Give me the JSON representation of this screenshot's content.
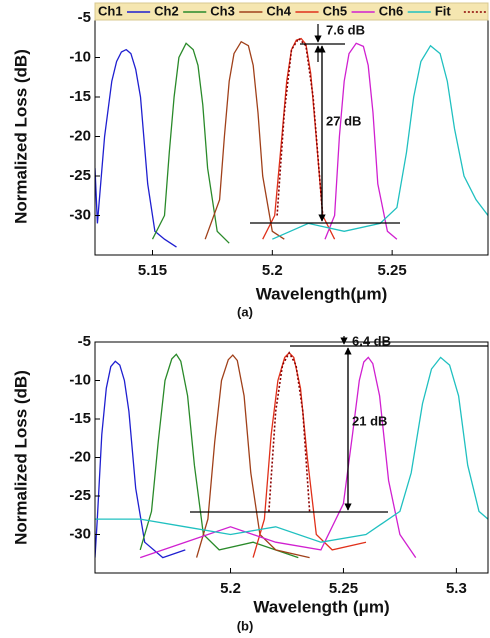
{
  "chart_data": [
    {
      "type": "line",
      "caption": "(a)",
      "x_label": "Wavelength(μm)",
      "y_label": "Normalized Loss (dB)",
      "xlim": [
        5.126,
        5.29
      ],
      "ylim": [
        -35,
        -5
      ],
      "xticks": [
        5.15,
        5.2,
        5.25
      ],
      "yticks": [
        -30,
        -25,
        -20,
        -15,
        -10,
        -5
      ],
      "legend": "top",
      "annotations": [
        "7.6 dB",
        "27 dB"
      ],
      "series": [
        {
          "name": "Ch1",
          "color": "#1f1fd0",
          "x": [
            5.126,
            5.127,
            5.13,
            5.133,
            5.135,
            5.137,
            5.139,
            5.141,
            5.143,
            5.145,
            5.148,
            5.151,
            5.155,
            5.16
          ],
          "values": [
            -24,
            -31,
            -20,
            -13,
            -10.5,
            -9.3,
            -9,
            -9.5,
            -11.5,
            -15,
            -26,
            -32,
            -33,
            -34
          ]
        },
        {
          "name": "Ch2",
          "color": "#2a8a2a",
          "x": [
            5.15,
            5.155,
            5.157,
            5.159,
            5.161,
            5.164,
            5.167,
            5.169,
            5.171,
            5.173,
            5.177,
            5.182
          ],
          "values": [
            -33,
            -30,
            -22,
            -15,
            -10,
            -8.2,
            -9,
            -11,
            -16,
            -24,
            -32,
            -33.5
          ]
        },
        {
          "name": "Ch3",
          "color": "#a0401a",
          "x": [
            5.172,
            5.178,
            5.18,
            5.182,
            5.184,
            5.187,
            5.19,
            5.192,
            5.194,
            5.196,
            5.2,
            5.205
          ],
          "values": [
            -33,
            -28,
            -20,
            -13,
            -9.5,
            -8,
            -8.5,
            -11,
            -17,
            -25,
            -32,
            -33
          ]
        },
        {
          "name": "Ch4",
          "color": "#e0301a",
          "x": [
            5.196,
            5.201,
            5.204,
            5.206,
            5.208,
            5.21,
            5.212,
            5.214,
            5.216,
            5.218,
            5.221,
            5.226
          ],
          "values": [
            -33,
            -30,
            -20,
            -13,
            -9,
            -7.8,
            -7.6,
            -8.3,
            -12,
            -19,
            -30,
            -33
          ]
        },
        {
          "name": "Ch5",
          "color": "#d020d0",
          "x": [
            5.222,
            5.226,
            5.228,
            5.23,
            5.232,
            5.235,
            5.238,
            5.24,
            5.242,
            5.244,
            5.248,
            5.252
          ],
          "values": [
            -33,
            -30,
            -20,
            -13,
            -9.5,
            -8.2,
            -8.6,
            -11,
            -17,
            -26,
            -32,
            -33
          ]
        },
        {
          "name": "Ch6",
          "color": "#20c0c0",
          "x": [
            5.2,
            5.215,
            5.23,
            5.245,
            5.252,
            5.256,
            5.259,
            5.262,
            5.266,
            5.27,
            5.273,
            5.276,
            5.28,
            5.285,
            5.29
          ],
          "values": [
            -33,
            -31,
            -32,
            -31,
            -29,
            -22,
            -15,
            -10.5,
            -8.5,
            -9.5,
            -13,
            -19,
            -25,
            -28,
            -30
          ]
        },
        {
          "name": "Fit",
          "color": "#8b0000",
          "linestyle": "dotted",
          "x": [
            5.202,
            5.205,
            5.208,
            5.211,
            5.214,
            5.217,
            5.221
          ],
          "values": [
            -30,
            -17,
            -9,
            -7.6,
            -8.5,
            -15,
            -30
          ]
        }
      ]
    },
    {
      "type": "line",
      "caption": "(b)",
      "x_label": "Wavelength (μm)",
      "y_label": "Normalized Loss (dB)",
      "xlim": [
        5.14,
        5.314
      ],
      "ylim": [
        -35,
        -5
      ],
      "xticks": [
        5.2,
        5.25,
        5.3
      ],
      "yticks": [
        -30,
        -25,
        -20,
        -15,
        -10,
        -5
      ],
      "annotations": [
        "6.4 dB",
        "21 dB"
      ],
      "series": [
        {
          "name": "Ch1",
          "color": "#1f1fd0",
          "x": [
            5.14,
            5.141,
            5.143,
            5.145,
            5.147,
            5.149,
            5.151,
            5.153,
            5.155,
            5.158,
            5.162,
            5.17,
            5.18
          ],
          "values": [
            -33,
            -28,
            -17,
            -11,
            -8.2,
            -7.5,
            -8,
            -10,
            -14,
            -24,
            -31,
            -33,
            -32
          ]
        },
        {
          "name": "Ch2",
          "color": "#2a8a2a",
          "x": [
            5.16,
            5.165,
            5.168,
            5.171,
            5.174,
            5.176,
            5.178,
            5.181,
            5.184,
            5.188,
            5.195,
            5.21,
            5.23
          ],
          "values": [
            -32,
            -27,
            -18,
            -10,
            -7.2,
            -6.6,
            -7.5,
            -12,
            -21,
            -30,
            -32,
            -31,
            -33
          ]
        },
        {
          "name": "Ch3",
          "color": "#a0401a",
          "x": [
            5.185,
            5.19,
            5.193,
            5.196,
            5.199,
            5.201,
            5.203,
            5.206,
            5.209,
            5.213,
            5.22,
            5.235
          ],
          "values": [
            -33,
            -28,
            -18,
            -10,
            -7.3,
            -6.7,
            -7.4,
            -12,
            -22,
            -30,
            -32,
            -33
          ]
        },
        {
          "name": "Ch4",
          "color": "#e0301a",
          "x": [
            5.21,
            5.215,
            5.218,
            5.221,
            5.224,
            5.226,
            5.228,
            5.231,
            5.234,
            5.238,
            5.245,
            5.26
          ],
          "values": [
            -33,
            -28,
            -17,
            -10,
            -7,
            -6.4,
            -7,
            -11,
            -20,
            -30,
            -32,
            -31
          ]
        },
        {
          "name": "Ch5",
          "color": "#d020d0",
          "x": [
            5.16,
            5.18,
            5.2,
            5.22,
            5.24,
            5.25,
            5.254,
            5.257,
            5.259,
            5.261,
            5.263,
            5.266,
            5.27,
            5.275,
            5.282
          ],
          "values": [
            -33,
            -31,
            -29,
            -31,
            -32,
            -26,
            -17,
            -10,
            -7.6,
            -7,
            -7.8,
            -12,
            -23,
            -30,
            -33
          ]
        },
        {
          "name": "Ch6",
          "color": "#20c0c0",
          "x": [
            5.14,
            5.16,
            5.18,
            5.2,
            5.22,
            5.24,
            5.26,
            5.275,
            5.28,
            5.285,
            5.289,
            5.293,
            5.297,
            5.301,
            5.305,
            5.31,
            5.314
          ],
          "values": [
            -28,
            -28,
            -29,
            -30,
            -29,
            -31,
            -30,
            -27,
            -22,
            -13,
            -8.5,
            -7,
            -8,
            -12,
            -21,
            -27,
            -28
          ]
        },
        {
          "name": "Fit",
          "color": "#8b0000",
          "linestyle": "dotted",
          "x": [
            5.217,
            5.22,
            5.223,
            5.226,
            5.229,
            5.232,
            5.235
          ],
          "values": [
            -27,
            -14,
            -8,
            -6.4,
            -8,
            -14,
            -27
          ]
        }
      ]
    }
  ]
}
